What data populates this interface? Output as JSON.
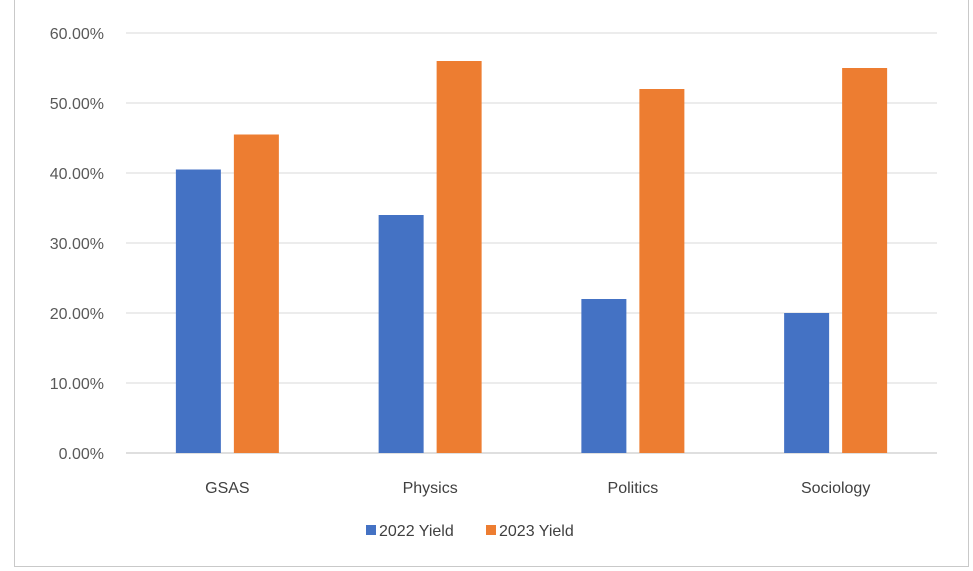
{
  "chart_data": {
    "type": "bar",
    "categories": [
      "GSAS",
      "Physics",
      "Politics",
      "Sociology"
    ],
    "series": [
      {
        "name": "2022 Yield",
        "values": [
          40.5,
          34.0,
          22.0,
          20.0
        ],
        "color": "#4472c4"
      },
      {
        "name": "2023 Yield",
        "values": [
          45.5,
          56.0,
          52.0,
          55.0
        ],
        "color": "#ed7d31"
      }
    ],
    "y_ticks": [
      "0.00%",
      "10.00%",
      "20.00%",
      "30.00%",
      "40.00%",
      "50.00%",
      "60.00%"
    ],
    "ylim": [
      0,
      60
    ],
    "grid": true,
    "legend_position": "bottom"
  }
}
